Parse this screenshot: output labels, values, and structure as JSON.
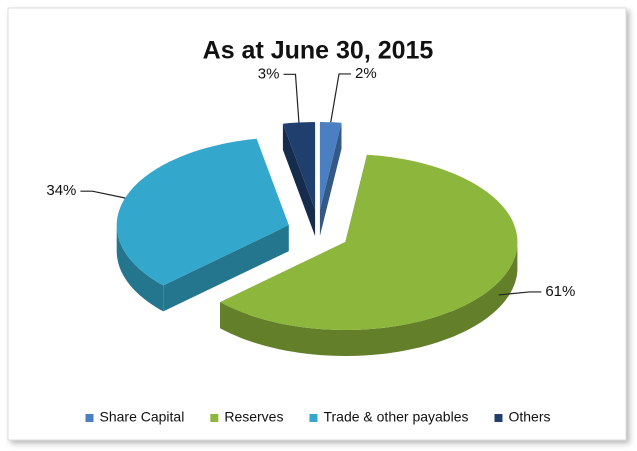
{
  "chart_data": {
    "type": "pie",
    "title": "As at June 30, 2015",
    "categories": [
      "Share Capital",
      "Reserves",
      "Trade & other payables",
      "Others"
    ],
    "values": [
      2,
      61,
      34,
      3
    ],
    "value_labels": [
      "2%",
      "61%",
      "34%",
      "3%"
    ],
    "colors": [
      "#4a7fc1",
      "#8db63c",
      "#33a8cc",
      "#1f3f6e"
    ],
    "legend": "bottom"
  }
}
